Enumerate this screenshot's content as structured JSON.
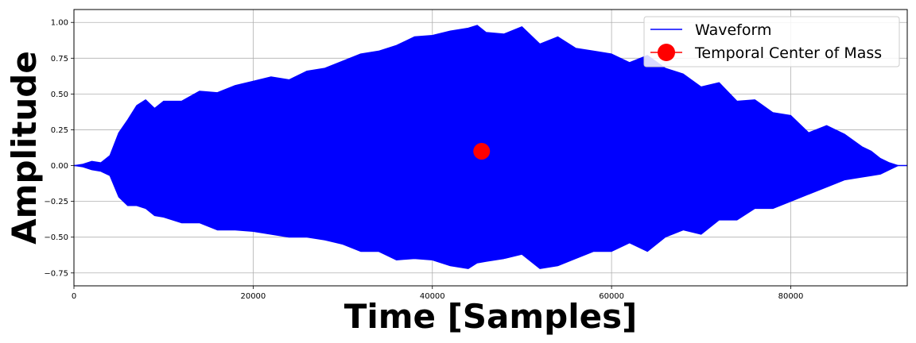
{
  "chart_data": {
    "type": "line",
    "title": "",
    "xlabel": "Time [Samples]",
    "ylabel": "Amplitude",
    "xlim": [
      0,
      93000
    ],
    "ylim": [
      -0.84,
      1.09
    ],
    "grid": true,
    "x_ticks": [
      0,
      20000,
      40000,
      60000,
      80000
    ],
    "x_tick_labels": [
      "0",
      "20000",
      "40000",
      "60000",
      "80000"
    ],
    "y_ticks": [
      -0.75,
      -0.5,
      -0.25,
      0.0,
      0.25,
      0.5,
      0.75,
      1.0
    ],
    "y_tick_labels": [
      "−0.75",
      "−0.50",
      "−0.25",
      "0.00",
      "0.25",
      "0.50",
      "0.75",
      "1.00"
    ],
    "legend": {
      "placement": "top-right"
    },
    "series": [
      {
        "name": "Waveform",
        "color": "#0000ff",
        "kind": "envelope",
        "x": [
          0,
          1000,
          2000,
          3000,
          4000,
          5000,
          6000,
          7000,
          8000,
          9000,
          10000,
          12000,
          14000,
          16000,
          18000,
          20000,
          22000,
          24000,
          26000,
          28000,
          30000,
          32000,
          34000,
          36000,
          38000,
          40000,
          42000,
          44000,
          45000,
          46000,
          48000,
          50000,
          52000,
          54000,
          56000,
          58000,
          60000,
          62000,
          64000,
          66000,
          68000,
          70000,
          72000,
          74000,
          76000,
          78000,
          80000,
          82000,
          84000,
          86000,
          88000,
          89000,
          90000,
          91000,
          92000,
          93000
        ],
        "upper": [
          0.0,
          0.01,
          0.03,
          0.02,
          0.07,
          0.23,
          0.32,
          0.42,
          0.46,
          0.4,
          0.45,
          0.45,
          0.52,
          0.51,
          0.56,
          0.59,
          0.62,
          0.6,
          0.66,
          0.68,
          0.73,
          0.78,
          0.8,
          0.84,
          0.9,
          0.91,
          0.94,
          0.96,
          0.98,
          0.93,
          0.92,
          0.97,
          0.85,
          0.9,
          0.82,
          0.8,
          0.78,
          0.72,
          0.77,
          0.68,
          0.64,
          0.55,
          0.58,
          0.45,
          0.46,
          0.37,
          0.35,
          0.23,
          0.28,
          0.22,
          0.13,
          0.1,
          0.05,
          0.02,
          0.0,
          0.0
        ],
        "lower": [
          0.0,
          -0.01,
          -0.03,
          -0.04,
          -0.07,
          -0.22,
          -0.28,
          -0.28,
          -0.3,
          -0.35,
          -0.36,
          -0.4,
          -0.4,
          -0.45,
          -0.45,
          -0.46,
          -0.48,
          -0.5,
          -0.5,
          -0.52,
          -0.55,
          -0.6,
          -0.6,
          -0.66,
          -0.65,
          -0.66,
          -0.7,
          -0.72,
          -0.68,
          -0.67,
          -0.65,
          -0.62,
          -0.72,
          -0.7,
          -0.65,
          -0.6,
          -0.6,
          -0.54,
          -0.6,
          -0.5,
          -0.45,
          -0.48,
          -0.38,
          -0.38,
          -0.3,
          -0.3,
          -0.25,
          -0.2,
          -0.15,
          -0.1,
          -0.08,
          -0.07,
          -0.06,
          -0.03,
          0.0,
          0.0
        ]
      },
      {
        "name": "Temporal Center of Mass",
        "color": "#ff0000",
        "kind": "point",
        "x": [
          45500
        ],
        "y": [
          0.1
        ]
      }
    ]
  }
}
